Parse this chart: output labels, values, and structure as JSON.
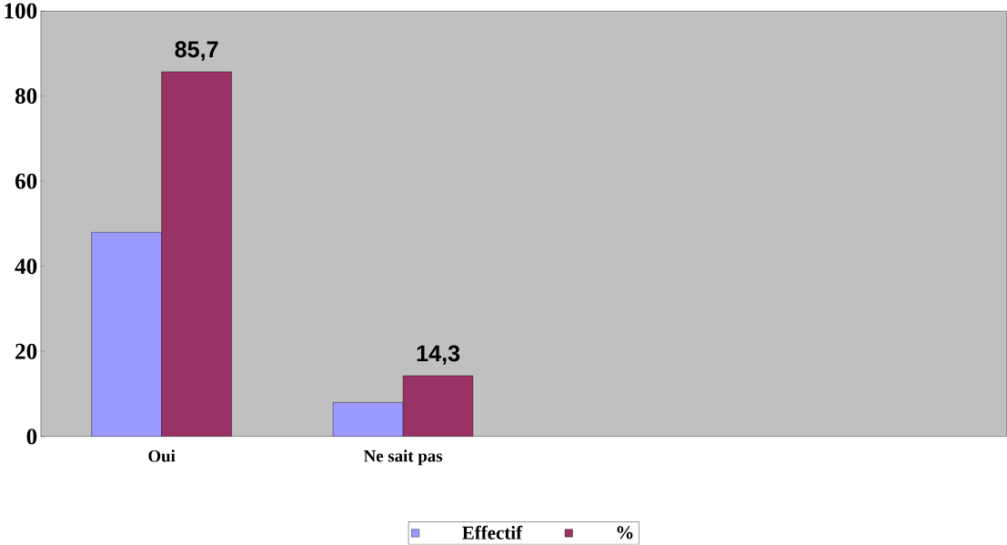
{
  "chart_data": {
    "type": "bar",
    "categories": [
      "Oui",
      "Ne sait pas",
      null,
      null
    ],
    "series": [
      {
        "name": "Effectif",
        "color": "#9999ff",
        "values": [
          48,
          8,
          null,
          null
        ]
      },
      {
        "name": "%",
        "color": "#993366",
        "values": [
          85.7,
          14.3,
          null,
          null
        ],
        "value_labels": [
          "85,7",
          "14,3",
          null,
          null
        ]
      }
    ],
    "ylim": [
      0,
      100
    ],
    "yticks": [
      0,
      20,
      40,
      60,
      80,
      100
    ],
    "grid": false,
    "legend": "bottom"
  }
}
